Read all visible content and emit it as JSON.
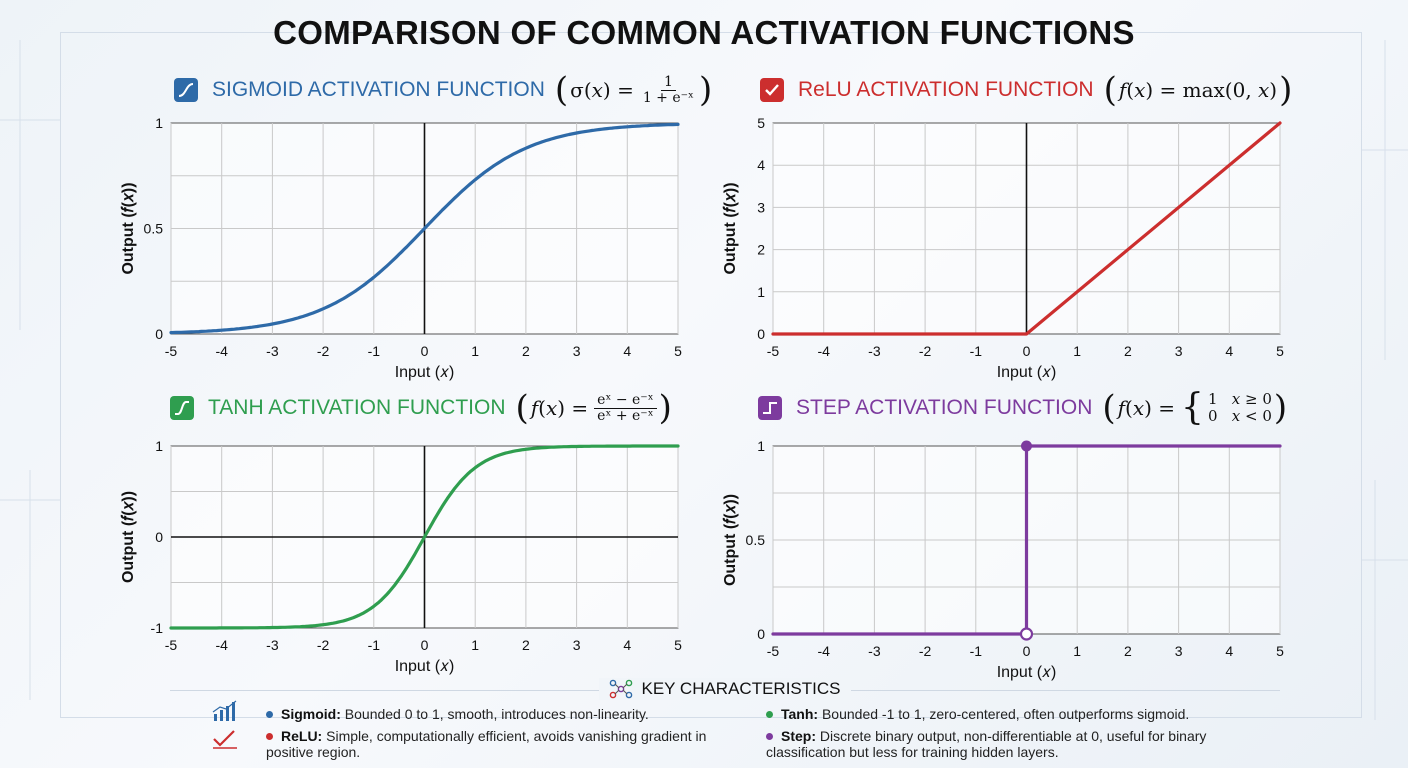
{
  "title": "COMPARISON OF COMMON ACTIVATION FUNCTIONS",
  "colors": {
    "sigmoid": "#2e6aa8",
    "relu": "#cc2e2e",
    "tanh": "#2f9e4f",
    "step": "#7d3b9e"
  },
  "chart_data": [
    {
      "id": "sigmoid",
      "type": "line",
      "title": "SIGMOID ACTIVATION FUNCTION",
      "formula": {
        "lhs": "σ(𝑥) =",
        "numerator": "1",
        "denominator": "1 + e⁻ˣ"
      },
      "xlabel": "Input (𝑥)",
      "ylabel": "Output (𝑓(𝑥))",
      "xlim": [
        -5,
        5
      ],
      "ylim": [
        0,
        1
      ],
      "x_ticks": [
        "-5",
        "-4",
        "-3",
        "-2",
        "-1",
        "0",
        "1",
        "2",
        "3",
        "4",
        "5"
      ],
      "y_ticks": [
        {
          "v": 0,
          "label": "0"
        },
        {
          "v": 0.5,
          "label": "0.5"
        },
        {
          "v": 1,
          "label": "1"
        }
      ],
      "grid": true,
      "series": [
        {
          "function": "sigmoid",
          "x": [
            -5,
            -4.5,
            -4,
            -3.5,
            -3,
            -2.5,
            -2,
            -1.5,
            -1,
            -0.5,
            0,
            0.5,
            1,
            1.5,
            2,
            2.5,
            3,
            3.5,
            4,
            4.5,
            5
          ],
          "y": [
            0.007,
            0.011,
            0.018,
            0.029,
            0.047,
            0.076,
            0.119,
            0.182,
            0.269,
            0.378,
            0.5,
            0.622,
            0.731,
            0.818,
            0.881,
            0.924,
            0.953,
            0.971,
            0.982,
            0.989,
            0.993
          ]
        }
      ]
    },
    {
      "id": "relu",
      "type": "line",
      "title": "ReLU ACTIVATION FUNCTION",
      "formula": {
        "lhs": "𝑓(𝑥) = max(0, 𝑥)"
      },
      "xlabel": "Input (𝑥)",
      "ylabel": "Output (𝑓(𝑥))",
      "xlim": [
        -5,
        5
      ],
      "ylim": [
        0,
        5
      ],
      "x_ticks": [
        "-5",
        "-4",
        "-3",
        "-2",
        "-1",
        "0",
        "1",
        "2",
        "3",
        "4",
        "5"
      ],
      "y_ticks": [
        {
          "v": 0,
          "label": "0"
        },
        {
          "v": 1,
          "label": "1"
        },
        {
          "v": 2,
          "label": "2"
        },
        {
          "v": 3,
          "label": "3"
        },
        {
          "v": 4,
          "label": "4"
        },
        {
          "v": 5,
          "label": "5"
        }
      ],
      "grid": true,
      "series": [
        {
          "function": "relu",
          "x": [
            -5,
            0,
            5
          ],
          "y": [
            0,
            0,
            5
          ]
        }
      ]
    },
    {
      "id": "tanh",
      "type": "line",
      "title": "TANH ACTIVATION FUNCTION",
      "formula": {
        "lhs": "𝑓(𝑥) =",
        "numerator": "eˣ − e⁻ˣ",
        "denominator": "eˣ + e⁻ˣ"
      },
      "xlabel": "Input (𝑥)",
      "ylabel": "Output (𝑓(𝑥))",
      "xlim": [
        -5,
        5
      ],
      "ylim": [
        -1,
        1
      ],
      "x_ticks": [
        "-5",
        "-4",
        "-3",
        "-2",
        "-1",
        "0",
        "1",
        "2",
        "3",
        "4",
        "5"
      ],
      "y_ticks": [
        {
          "v": -1,
          "label": "-1"
        },
        {
          "v": 0,
          "label": "0"
        },
        {
          "v": 1,
          "label": "1"
        }
      ],
      "grid": true,
      "series": [
        {
          "function": "tanh",
          "x": [
            -5,
            -4.5,
            -4,
            -3.5,
            -3,
            -2.5,
            -2,
            -1.5,
            -1,
            -0.5,
            0,
            0.5,
            1,
            1.5,
            2,
            2.5,
            3,
            3.5,
            4,
            4.5,
            5
          ],
          "y": [
            -1.0,
            -1.0,
            -0.999,
            -0.998,
            -0.995,
            -0.987,
            -0.964,
            -0.905,
            -0.762,
            -0.462,
            0,
            0.462,
            0.762,
            0.905,
            0.964,
            0.987,
            0.995,
            0.998,
            0.999,
            1.0,
            1.0
          ]
        }
      ]
    },
    {
      "id": "step",
      "type": "line",
      "title": "STEP ACTIVATION FUNCTION",
      "formula": {
        "lhs": "𝑓(𝑥) =",
        "cases": [
          "1   𝑥 ≥ 0",
          "0   𝑥 < 0"
        ]
      },
      "xlabel": "Input (𝑥)",
      "ylabel": "Output (𝑓(𝑥))",
      "xlim": [
        -5,
        5
      ],
      "ylim": [
        0,
        1
      ],
      "x_ticks": [
        "-5",
        "-4",
        "-3",
        "-2",
        "-1",
        "0",
        "1",
        "2",
        "3",
        "4",
        "5"
      ],
      "y_ticks": [
        {
          "v": 0,
          "label": "0"
        },
        {
          "v": 0.5,
          "label": "0.5"
        },
        {
          "v": 1,
          "label": "1"
        }
      ],
      "grid": true,
      "series": [
        {
          "function": "step",
          "x": [
            -5,
            0,
            0,
            5
          ],
          "y": [
            0,
            0,
            1,
            1
          ]
        }
      ]
    }
  ],
  "key": {
    "title": "KEY CHARACTERISTICS",
    "items": [
      {
        "name": "Sigmoid:",
        "text": "Bounded 0 to 1, smooth, introduces non-linearity."
      },
      {
        "name": "Tanh:",
        "text": "Bounded -1 to 1, zero-centered, often outperforms sigmoid."
      },
      {
        "name": "ReLU:",
        "text": "Simple, computationally efficient, avoids vanishing gradient in positive region."
      },
      {
        "name": "Step:",
        "text": "Discrete binary output, non-differentiable at 0, useful for binary classification but less for training hidden layers."
      }
    ]
  }
}
